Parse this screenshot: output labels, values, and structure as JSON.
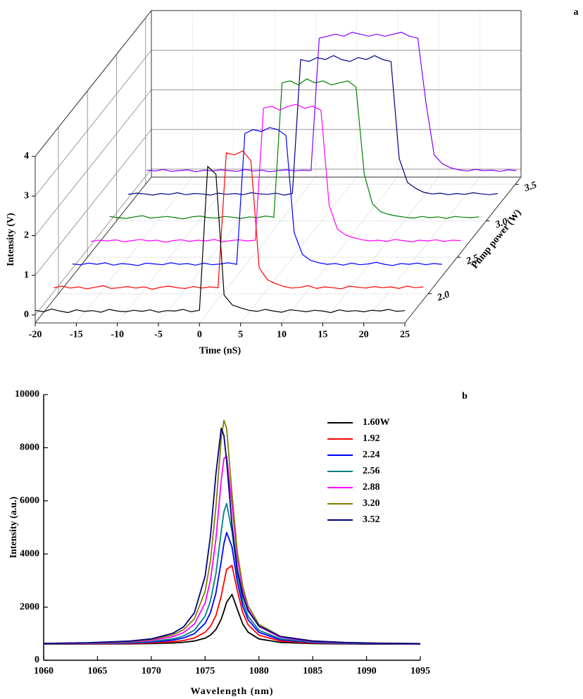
{
  "chart_data": [
    {
      "type": "waterfall3d",
      "panel_label": "a",
      "x_label": "Time (nS)",
      "y_label": "Intensity (V)",
      "z_label": "Pump power (W)",
      "x": [
        -20,
        -19,
        -18,
        -17,
        -16,
        -15,
        -14,
        -13,
        -12,
        -11,
        -10,
        -9,
        -8,
        -7,
        -6,
        -5,
        -4,
        -3,
        -2,
        -1,
        0,
        1,
        2,
        3,
        4,
        5,
        6,
        7,
        8,
        9,
        10,
        11,
        12,
        13,
        14,
        15,
        16,
        17,
        18,
        19,
        20,
        21,
        22,
        23,
        24,
        25
      ],
      "xlim": [
        -20,
        25
      ],
      "xticks": [
        -20,
        -15,
        -10,
        -5,
        0,
        5,
        10,
        15,
        20,
        25
      ],
      "ylim": [
        -0.2,
        4
      ],
      "yticks": [
        0,
        1,
        2,
        3,
        4
      ],
      "zlim": [
        1.6,
        3.6
      ],
      "zticks": [
        {
          "value": 2,
          "label": "2.0"
        },
        {
          "value": 2.5,
          "label": "2.5"
        },
        {
          "value": 3,
          "label": "3.0"
        },
        {
          "value": 3.5,
          "label": "3.5"
        }
      ],
      "grid": true,
      "series": [
        {
          "color": "#000000",
          "z": 1.6,
          "values": [
            0.12,
            0.08,
            0.15,
            0.1,
            0.06,
            0.13,
            0.09,
            0.11,
            0.07,
            0.14,
            0.1,
            0.08,
            0.12,
            0.09,
            0.13,
            0.07,
            0.11,
            0.1,
            0.14,
            0.08,
            0.12,
            3.75,
            3.55,
            0.5,
            0.25,
            0.18,
            0.12,
            0.09,
            0.14,
            0.1,
            0.07,
            0.13,
            0.11,
            0.08,
            0.12,
            0.1,
            0.06,
            0.13,
            0.09,
            0.11,
            0.08,
            0.12,
            0.1,
            0.14,
            0.09,
            0.11
          ]
        },
        {
          "color": "#ff0000",
          "z": 1.92,
          "values": [
            0.1,
            0.14,
            0.09,
            0.12,
            0.07,
            0.11,
            0.15,
            0.08,
            0.1,
            0.13,
            0.09,
            0.12,
            0.06,
            0.11,
            0.14,
            0.1,
            0.08,
            0.13,
            0.09,
            0.12,
            0.1,
            3.5,
            3.45,
            3.55,
            3.3,
            0.6,
            0.3,
            0.2,
            0.13,
            0.09,
            0.11,
            0.15,
            0.08,
            0.12,
            0.1,
            0.07,
            0.14,
            0.11,
            0.09,
            0.13,
            0.1,
            0.12,
            0.08,
            0.14,
            0.1,
            0.12
          ]
        },
        {
          "color": "#0000ff",
          "z": 2.24,
          "values": [
            0.11,
            0.09,
            0.13,
            0.1,
            0.14,
            0.08,
            0.12,
            0.1,
            0.07,
            0.13,
            0.11,
            0.09,
            0.14,
            0.1,
            0.12,
            0.08,
            0.13,
            0.09,
            0.11,
            0.14,
            0.1,
            3.4,
            3.5,
            3.45,
            3.55,
            3.5,
            3.35,
            0.9,
            0.35,
            0.2,
            0.14,
            0.1,
            0.12,
            0.08,
            0.13,
            0.09,
            0.11,
            0.15,
            0.1,
            0.07,
            0.12,
            0.1,
            0.13,
            0.09,
            0.12,
            0.1
          ]
        },
        {
          "color": "#ff00ff",
          "z": 2.56,
          "values": [
            0.09,
            0.12,
            0.1,
            0.13,
            0.08,
            0.11,
            0.14,
            0.1,
            0.12,
            0.07,
            0.11,
            0.13,
            0.09,
            0.12,
            0.1,
            0.14,
            0.08,
            0.11,
            0.13,
            0.1,
            0.12,
            3.45,
            3.5,
            3.4,
            3.5,
            3.55,
            3.45,
            3.5,
            3.4,
            1.0,
            0.4,
            0.25,
            0.18,
            0.13,
            0.1,
            0.12,
            0.09,
            0.14,
            0.11,
            0.08,
            0.12,
            0.1,
            0.13,
            0.09,
            0.12,
            0.11
          ]
        },
        {
          "color": "#008000",
          "z": 2.88,
          "values": [
            0.13,
            0.1,
            0.08,
            0.12,
            0.15,
            0.09,
            0.11,
            0.13,
            0.1,
            0.07,
            0.12,
            0.14,
            0.1,
            0.09,
            0.13,
            0.11,
            0.08,
            0.12,
            0.1,
            0.14,
            0.11,
            3.5,
            3.55,
            3.45,
            3.6,
            3.5,
            3.55,
            3.45,
            3.5,
            3.55,
            3.4,
            1.2,
            0.45,
            0.25,
            0.18,
            0.14,
            0.11,
            0.09,
            0.13,
            0.1,
            0.12,
            0.08,
            0.13,
            0.11,
            0.1,
            0.12
          ]
        },
        {
          "color": "#000080",
          "z": 3.2,
          "values": [
            0.1,
            0.13,
            0.11,
            0.08,
            0.12,
            0.1,
            0.14,
            0.09,
            0.12,
            0.11,
            0.08,
            0.13,
            0.1,
            0.12,
            0.09,
            0.14,
            0.11,
            0.1,
            0.13,
            0.08,
            0.12,
            3.5,
            3.45,
            3.55,
            3.5,
            3.6,
            3.5,
            3.45,
            3.55,
            3.5,
            3.6,
            3.5,
            3.45,
            1.0,
            0.4,
            0.25,
            0.15,
            0.11,
            0.13,
            0.09,
            0.12,
            0.1,
            0.14,
            0.11,
            0.09,
            0.12
          ]
        },
        {
          "color": "#8000ff",
          "z": 3.52,
          "values": [
            0.12,
            0.1,
            0.14,
            0.09,
            0.11,
            0.13,
            0.08,
            0.12,
            0.1,
            0.13,
            0.11,
            0.09,
            0.14,
            0.1,
            0.12,
            0.08,
            0.11,
            0.13,
            0.1,
            0.12,
            0.11,
            3.45,
            3.5,
            3.55,
            3.5,
            3.6,
            3.55,
            3.5,
            3.55,
            3.5,
            3.55,
            3.6,
            3.5,
            3.45,
            1.8,
            0.5,
            0.28,
            0.18,
            0.13,
            0.1,
            0.14,
            0.11,
            0.12,
            0.09,
            0.13,
            0.11
          ]
        }
      ]
    },
    {
      "type": "line",
      "panel_label": "b",
      "x_label": "Wavelength (nm)",
      "y_label": "Intensity (a.u.)",
      "x": [
        1060,
        1064,
        1068,
        1070,
        1072,
        1073,
        1074,
        1075,
        1075.5,
        1076,
        1076.5,
        1076.75,
        1077,
        1077.5,
        1078,
        1078.5,
        1079,
        1080,
        1082,
        1085,
        1088,
        1091,
        1095
      ],
      "xlim": [
        1060,
        1095
      ],
      "xticks": [
        1060,
        1065,
        1070,
        1075,
        1080,
        1085,
        1090,
        1095
      ],
      "ylim": [
        0,
        10000
      ],
      "yticks": [
        0,
        2000,
        4000,
        6000,
        8000,
        10000
      ],
      "legend": "upper right",
      "series": [
        {
          "name": "1.60W",
          "color": "#000000",
          "values": [
            605,
            609,
            617,
            628,
            651,
            676,
            724,
            834,
            948,
            1155,
            1550,
            1848,
            2186,
            2477,
            1915,
            1362,
            1056,
            803,
            670,
            626,
            614,
            608,
            605
          ]
        },
        {
          "name": "1.92",
          "color": "#ff0000",
          "values": [
            609,
            616,
            632,
            652,
            697,
            744,
            837,
            1052,
            1276,
            1679,
            2414,
            2922,
            3419,
            3569,
            2609,
            1794,
            1338,
            942,
            722,
            646,
            624,
            615,
            609
          ]
        },
        {
          "name": "2.24",
          "color": "#0000ff",
          "values": [
            614,
            625,
            651,
            683,
            757,
            839,
            1000,
            1386,
            1794,
            2521,
            3724,
            4387,
            4808,
            4264,
            2946,
            2036,
            1522,
            1051,
            770,
            667,
            635,
            622,
            613
          ]
        },
        {
          "name": "2.56",
          "color": "#008080",
          "values": [
            618,
            631,
            665,
            706,
            804,
            912,
            1130,
            1660,
            2232,
            3250,
            4840,
            5588,
            5900,
            4840,
            3250,
            2232,
            1660,
            1130,
            804,
            682,
            643,
            627,
            616
          ]
        },
        {
          "name": "2.88",
          "color": "#ff00ff",
          "values": [
            625,
            643,
            689,
            747,
            886,
            1041,
            1358,
            2152,
            3017,
            4547,
            6763,
            7593,
            7679,
            5855,
            3832,
            2609,
            1923,
            1274,
            865,
            707,
            658,
            636,
            622
          ]
        },
        {
          "name": "3.20",
          "color": "#808000",
          "values": [
            630,
            651,
            708,
            779,
            952,
            1148,
            1555,
            2594,
            3743,
            5755,
            8349,
            9029,
            8729,
            6270,
            4065,
            2772,
            2045,
            1352,
            902,
            724,
            667,
            642,
            625
          ]
        },
        {
          "name": "3.52",
          "color": "#000080",
          "values": [
            633,
            657,
            721,
            805,
            1012,
            1255,
            1782,
            3161,
            4675,
            6998,
            8732,
            8465,
            7487,
            5083,
            3404,
            2434,
            1863,
            1290,
            892,
            724,
            668,
            643,
            626
          ]
        }
      ]
    }
  ]
}
